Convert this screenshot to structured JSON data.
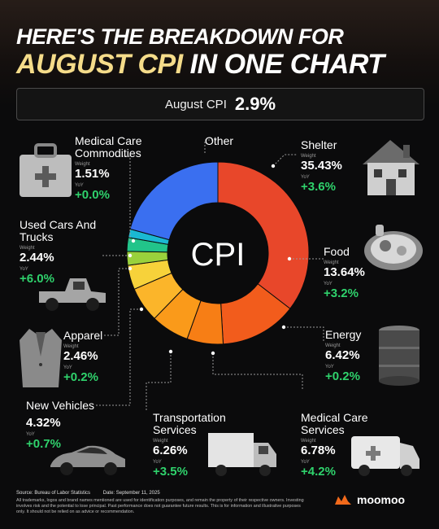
{
  "header": {
    "line1": "HERE'S THE BREAKDOWN FOR",
    "line2_highlight": "AUGUST CPI",
    "line2_rest": " IN ONE CHART"
  },
  "summary": {
    "label": "August CPI",
    "value": "2.9%"
  },
  "chart_data": {
    "type": "pie",
    "center_label": "CPI",
    "weight_label": "Weight",
    "yoy_label": "YoY",
    "slices": [
      {
        "name": "Shelter",
        "weight": "35.43%",
        "yoy": "+3.6%",
        "value": 35.43,
        "color": "#e8472a"
      },
      {
        "name": "Food",
        "weight": "13.64%",
        "yoy": "+3.2%",
        "value": 13.64,
        "color": "#f25c1c"
      },
      {
        "name": "Energy",
        "weight": "6.42%",
        "yoy": "+0.2%",
        "value": 6.42,
        "color": "#f77e15"
      },
      {
        "name": "Medical Care Services",
        "weight": "6.78%",
        "yoy": "+4.2%",
        "value": 6.78,
        "color": "#fa9a1a"
      },
      {
        "name": "Transportation Services",
        "weight": "6.26%",
        "yoy": "+3.5%",
        "value": 6.26,
        "color": "#fbb52a"
      },
      {
        "name": "New Vehicles",
        "weight": "4.32%",
        "yoy": "+0.7%",
        "value": 4.32,
        "color": "#f7d23a"
      },
      {
        "name": "Apparel",
        "weight": "2.46%",
        "yoy": "+0.2%",
        "value": 2.46,
        "color": "#9ad13c"
      },
      {
        "name": "Used Cars And Trucks",
        "weight": "2.44%",
        "yoy": "+6.0%",
        "value": 2.44,
        "color": "#22c48a"
      },
      {
        "name": "Medical Care Commodities",
        "weight": "1.51%",
        "yoy": "+0.0%",
        "value": 1.51,
        "color": "#1ab8d2"
      },
      {
        "name": "Other",
        "weight": "",
        "yoy": "",
        "value": 20.74,
        "color": "#3a6ff0"
      }
    ]
  },
  "labels": {
    "shelter": {
      "name": "Shelter",
      "weight": "35.43%",
      "yoy": "+3.6%"
    },
    "food": {
      "name": "Food",
      "weight": "13.64%",
      "yoy": "+3.2%"
    },
    "energy": {
      "name": "Energy",
      "weight": "6.42%",
      "yoy": "+0.2%"
    },
    "med_services": {
      "name": "Medical Care\nServices",
      "weight": "6.78%",
      "yoy": "+4.2%"
    },
    "transport": {
      "name": "Transportation\nServices",
      "weight": "6.26%",
      "yoy": "+3.5%"
    },
    "new_vehicles": {
      "name": "New Vehicles",
      "weight": "4.32%",
      "yoy": "+0.7%"
    },
    "apparel": {
      "name": "Apparel",
      "weight": "2.46%",
      "yoy": "+0.2%"
    },
    "used_cars": {
      "name": "Used Cars And\nTrucks",
      "weight": "2.44%",
      "yoy": "+6.0%"
    },
    "med_commodities": {
      "name": "Medical Care\nCommodities",
      "weight": "1.51%",
      "yoy": "+0.0%"
    },
    "other": {
      "name": "Other"
    },
    "weight_word": "Weight",
    "yoy_word": "YoY"
  },
  "icons": [
    "house-icon",
    "food-plate-icon",
    "oil-barrel-icon",
    "ambulance-icon",
    "box-truck-icon",
    "sports-car-icon",
    "blazer-icon",
    "pickup-truck-icon",
    "medical-kit-icon"
  ],
  "footer": {
    "source": "Source: Bureau of Labor Statistics",
    "date": "Date: September 11, 2025",
    "disclaimer": "All trademarks, logos and brand names mentioned are used for identification purposes, and remain the property of their respective owners. Investing involves risk and the potential to lose principal. Past performance does not guarantee future results. This is for information and illustrative purposes only. It should not be relied on as advice or recommendation."
  },
  "brand": {
    "name": "moomoo",
    "color": "#f26a1b"
  }
}
